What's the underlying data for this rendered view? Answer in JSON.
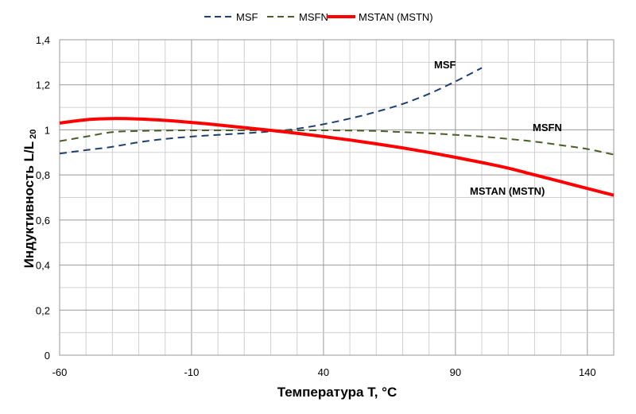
{
  "chart_data": {
    "type": "line",
    "title": "",
    "xlabel": "Температура T, °C",
    "ylabel": "Индуктивность L/L",
    "ylabel_subscript": "20",
    "xlim": [
      -60,
      150
    ],
    "ylim": [
      0,
      1.4
    ],
    "x_tick_labels": [
      "-60",
      "-10",
      "40",
      "90",
      "140"
    ],
    "y_tick_labels": [
      "0",
      "0,2",
      "0,4",
      "0,6",
      "0,8",
      "1",
      "1,2",
      "1,4"
    ],
    "grid": true,
    "legend_position": "top-center",
    "series": [
      {
        "name": "MSF",
        "annotation": "MSF",
        "style": "dashed",
        "color": "#1F3F6E",
        "x": [
          -60,
          -50,
          -40,
          -30,
          -20,
          -10,
          0,
          10,
          20,
          30,
          40,
          50,
          60,
          70,
          80,
          90,
          100
        ],
        "y": [
          0.895,
          0.91,
          0.925,
          0.945,
          0.96,
          0.97,
          0.978,
          0.985,
          0.993,
          1.005,
          1.025,
          1.05,
          1.08,
          1.115,
          1.16,
          1.215,
          1.275
        ]
      },
      {
        "name": "MSFN",
        "annotation": "MSFN",
        "style": "dashed",
        "color": "#4A5E2A",
        "x": [
          -60,
          -50,
          -40,
          -30,
          -20,
          -10,
          0,
          10,
          20,
          30,
          40,
          50,
          60,
          70,
          80,
          90,
          100,
          110,
          120,
          130,
          140,
          150
        ],
        "y": [
          0.95,
          0.97,
          0.99,
          0.995,
          0.997,
          0.998,
          0.998,
          0.998,
          0.998,
          0.998,
          0.998,
          0.997,
          0.995,
          0.99,
          0.985,
          0.978,
          0.97,
          0.96,
          0.948,
          0.932,
          0.915,
          0.89
        ]
      },
      {
        "name": "MSTAN (MSTN)",
        "annotation": "MSTAN (MSTN)",
        "style": "solid",
        "color": "#FF0000",
        "x": [
          -60,
          -50,
          -40,
          -30,
          -20,
          -10,
          0,
          10,
          20,
          30,
          40,
          50,
          60,
          70,
          80,
          90,
          100,
          110,
          120,
          130,
          140,
          150
        ],
        "y": [
          1.03,
          1.045,
          1.05,
          1.048,
          1.042,
          1.033,
          1.022,
          1.01,
          0.998,
          0.985,
          0.97,
          0.955,
          0.938,
          0.92,
          0.9,
          0.878,
          0.855,
          0.83,
          0.8,
          0.77,
          0.74,
          0.71
        ]
      }
    ]
  }
}
